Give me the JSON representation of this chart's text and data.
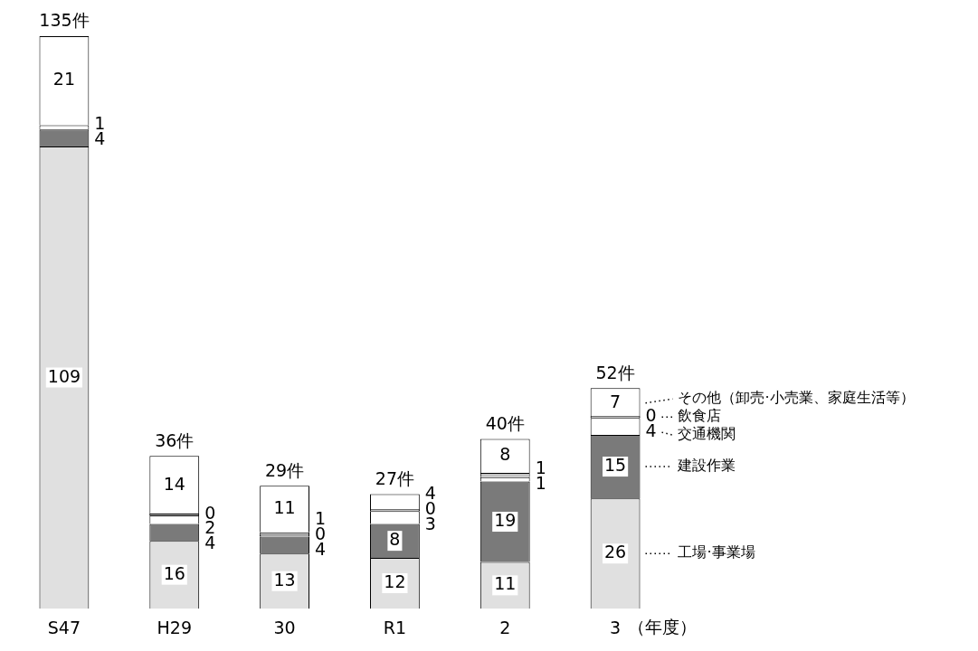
{
  "chart_data": {
    "type": "bar",
    "stacked": true,
    "data_labels": true,
    "legend": false,
    "grid": false,
    "tick_labels": "x",
    "xlabel": "（年度）",
    "categories": [
      "S47",
      "H29",
      "30",
      "R1",
      "2",
      "3"
    ],
    "totals": [
      "135件",
      "36件",
      "29件",
      "27件",
      "40件",
      "52件"
    ],
    "series": [
      {
        "name": "工場·事業場",
        "color": "#e0e0e0",
        "values": [
          109,
          16,
          13,
          12,
          11,
          26
        ]
      },
      {
        "name": "建設作業",
        "color": "#7a7a7a",
        "values": [
          4,
          4,
          4,
          8,
          19,
          15
        ]
      },
      {
        "name": "交通機関",
        "color": "#ffffff",
        "values": [
          1,
          2,
          0,
          3,
          1,
          4
        ]
      },
      {
        "name": "飲食店",
        "color": "#c4c4c4",
        "values": [
          null,
          0,
          1,
          0,
          1,
          0
        ]
      },
      {
        "name": "その他（卸売·小売業、家庭生活等）",
        "color": "#ffffff",
        "values": [
          21,
          14,
          11,
          4,
          8,
          7
        ]
      }
    ]
  }
}
